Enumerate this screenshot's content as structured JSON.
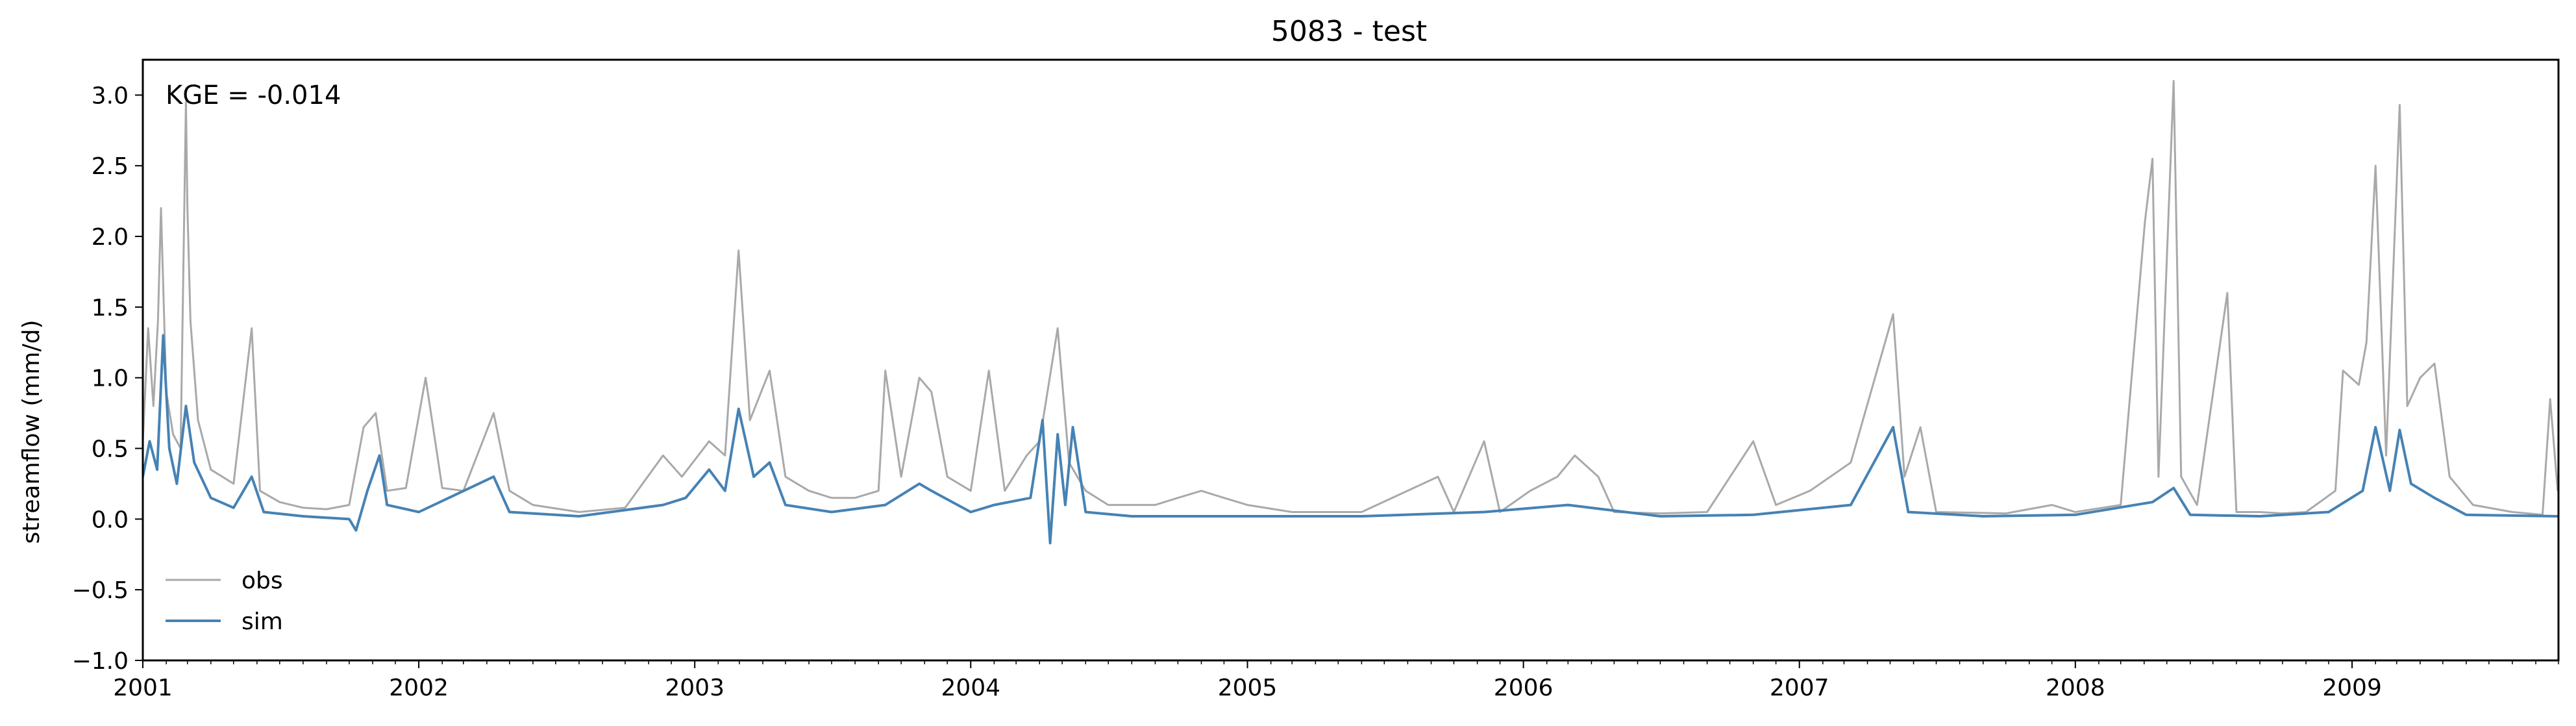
{
  "chart_data": {
    "type": "line",
    "title": "5083 - test",
    "xlabel": "",
    "ylabel": "streamflow (mm/d)",
    "annotation": "KGE = -0.014",
    "xlim": [
      "2001-01-01",
      "2009-10-01"
    ],
    "ylim": [
      -1.0,
      3.25
    ],
    "x_ticks": [
      "2001",
      "2002",
      "2003",
      "2004",
      "2005",
      "2006",
      "2007",
      "2008",
      "2009"
    ],
    "y_ticks": [
      "−1.0",
      "−0.5",
      "0.0",
      "0.5",
      "1.0",
      "1.5",
      "2.0",
      "2.5",
      "3.0"
    ],
    "grid": false,
    "legend_position": "lower-left",
    "series": [
      {
        "name": "obs",
        "color": "#a9a9a9",
        "points": [
          [
            "2001-01-01",
            0.55
          ],
          [
            "2001-01-08",
            1.35
          ],
          [
            "2001-01-15",
            0.8
          ],
          [
            "2001-01-21",
            1.4
          ],
          [
            "2001-01-25",
            2.2
          ],
          [
            "2001-02-01",
            0.9
          ],
          [
            "2001-02-10",
            0.6
          ],
          [
            "2001-02-20",
            0.5
          ],
          [
            "2001-02-27",
            2.95
          ],
          [
            "2001-03-01",
            2.2
          ],
          [
            "2001-03-05",
            1.4
          ],
          [
            "2001-03-15",
            0.7
          ],
          [
            "2001-04-01",
            0.35
          ],
          [
            "2001-05-01",
            0.25
          ],
          [
            "2001-05-25",
            1.35
          ],
          [
            "2001-06-05",
            0.2
          ],
          [
            "2001-07-01",
            0.12
          ],
          [
            "2001-08-01",
            0.08
          ],
          [
            "2001-09-01",
            0.07
          ],
          [
            "2001-10-01",
            0.1
          ],
          [
            "2001-10-20",
            0.65
          ],
          [
            "2001-11-05",
            0.75
          ],
          [
            "2001-11-20",
            0.2
          ],
          [
            "2001-12-15",
            0.22
          ],
          [
            "2002-01-10",
            1.0
          ],
          [
            "2002-02-01",
            0.22
          ],
          [
            "2002-03-01",
            0.2
          ],
          [
            "2002-04-10",
            0.75
          ],
          [
            "2002-05-01",
            0.2
          ],
          [
            "2002-06-01",
            0.1
          ],
          [
            "2002-08-01",
            0.05
          ],
          [
            "2002-10-01",
            0.08
          ],
          [
            "2002-11-20",
            0.45
          ],
          [
            "2002-12-15",
            0.3
          ],
          [
            "2003-01-20",
            0.55
          ],
          [
            "2003-02-10",
            0.45
          ],
          [
            "2003-02-28",
            1.9
          ],
          [
            "2003-03-15",
            0.7
          ],
          [
            "2003-04-10",
            1.05
          ],
          [
            "2003-05-01",
            0.3
          ],
          [
            "2003-06-01",
            0.2
          ],
          [
            "2003-07-01",
            0.15
          ],
          [
            "2003-08-01",
            0.15
          ],
          [
            "2003-09-01",
            0.2
          ],
          [
            "2003-09-10",
            1.05
          ],
          [
            "2003-10-01",
            0.3
          ],
          [
            "2003-10-25",
            1.0
          ],
          [
            "2003-11-10",
            0.9
          ],
          [
            "2003-12-01",
            0.3
          ],
          [
            "2004-01-01",
            0.2
          ],
          [
            "2004-01-25",
            1.05
          ],
          [
            "2004-02-15",
            0.2
          ],
          [
            "2004-03-15",
            0.45
          ],
          [
            "2004-04-01",
            0.55
          ],
          [
            "2004-04-25",
            1.35
          ],
          [
            "2004-05-10",
            0.4
          ],
          [
            "2004-06-01",
            0.2
          ],
          [
            "2004-07-01",
            0.1
          ],
          [
            "2004-09-01",
            0.1
          ],
          [
            "2004-10-01",
            0.15
          ],
          [
            "2004-11-01",
            0.2
          ],
          [
            "2004-12-01",
            0.15
          ],
          [
            "2005-01-01",
            0.1
          ],
          [
            "2005-03-01",
            0.05
          ],
          [
            "2005-06-01",
            0.05
          ],
          [
            "2005-09-10",
            0.3
          ],
          [
            "2005-10-01",
            0.05
          ],
          [
            "2005-11-10",
            0.55
          ],
          [
            "2005-12-01",
            0.05
          ],
          [
            "2006-01-10",
            0.2
          ],
          [
            "2006-02-15",
            0.3
          ],
          [
            "2006-03-10",
            0.45
          ],
          [
            "2006-04-10",
            0.3
          ],
          [
            "2006-05-01",
            0.05
          ],
          [
            "2006-07-01",
            0.04
          ],
          [
            "2006-09-01",
            0.05
          ],
          [
            "2006-11-01",
            0.55
          ],
          [
            "2006-12-01",
            0.1
          ],
          [
            "2007-01-15",
            0.2
          ],
          [
            "2007-03-10",
            0.4
          ],
          [
            "2007-05-05",
            1.45
          ],
          [
            "2007-05-20",
            0.3
          ],
          [
            "2007-06-10",
            0.65
          ],
          [
            "2007-07-01",
            0.05
          ],
          [
            "2007-10-01",
            0.04
          ],
          [
            "2007-12-01",
            0.1
          ],
          [
            "2008-01-01",
            0.05
          ],
          [
            "2008-03-01",
            0.1
          ],
          [
            "2008-04-02",
            2.1
          ],
          [
            "2008-04-12",
            2.55
          ],
          [
            "2008-04-20",
            0.3
          ],
          [
            "2008-05-10",
            3.1
          ],
          [
            "2008-05-20",
            0.3
          ],
          [
            "2008-06-10",
            0.1
          ],
          [
            "2008-07-20",
            1.6
          ],
          [
            "2008-08-01",
            0.05
          ],
          [
            "2008-09-01",
            0.05
          ],
          [
            "2008-10-01",
            0.04
          ],
          [
            "2008-11-01",
            0.05
          ],
          [
            "2008-12-10",
            0.2
          ],
          [
            "2008-12-20",
            1.05
          ],
          [
            "2009-01-10",
            0.95
          ],
          [
            "2009-01-20",
            1.25
          ],
          [
            "2009-02-01",
            2.5
          ],
          [
            "2009-02-15",
            0.45
          ],
          [
            "2009-03-05",
            2.93
          ],
          [
            "2009-03-15",
            0.8
          ],
          [
            "2009-04-01",
            1.0
          ],
          [
            "2009-04-20",
            1.1
          ],
          [
            "2009-05-10",
            0.3
          ],
          [
            "2009-06-10",
            0.1
          ],
          [
            "2009-08-01",
            0.05
          ],
          [
            "2009-09-10",
            0.03
          ],
          [
            "2009-09-20",
            0.85
          ],
          [
            "2009-09-30",
            0.2
          ]
        ]
      },
      {
        "name": "sim",
        "color": "#4682b4",
        "points": [
          [
            "2001-01-01",
            0.3
          ],
          [
            "2001-01-10",
            0.55
          ],
          [
            "2001-01-20",
            0.35
          ],
          [
            "2001-01-28",
            1.3
          ],
          [
            "2001-02-05",
            0.5
          ],
          [
            "2001-02-15",
            0.25
          ],
          [
            "2001-02-27",
            0.8
          ],
          [
            "2001-03-10",
            0.4
          ],
          [
            "2001-04-01",
            0.15
          ],
          [
            "2001-05-01",
            0.08
          ],
          [
            "2001-05-25",
            0.3
          ],
          [
            "2001-06-10",
            0.05
          ],
          [
            "2001-08-01",
            0.02
          ],
          [
            "2001-10-01",
            0.0
          ],
          [
            "2001-10-10",
            -0.08
          ],
          [
            "2001-10-25",
            0.2
          ],
          [
            "2001-11-10",
            0.45
          ],
          [
            "2001-11-20",
            0.1
          ],
          [
            "2002-01-01",
            0.05
          ],
          [
            "2002-04-10",
            0.3
          ],
          [
            "2002-05-01",
            0.05
          ],
          [
            "2002-08-01",
            0.02
          ],
          [
            "2002-11-20",
            0.1
          ],
          [
            "2002-12-20",
            0.15
          ],
          [
            "2003-01-20",
            0.35
          ],
          [
            "2003-02-10",
            0.2
          ],
          [
            "2003-02-28",
            0.78
          ],
          [
            "2003-03-20",
            0.3
          ],
          [
            "2003-04-10",
            0.4
          ],
          [
            "2003-05-01",
            0.1
          ],
          [
            "2003-07-01",
            0.05
          ],
          [
            "2003-09-10",
            0.1
          ],
          [
            "2003-10-25",
            0.25
          ],
          [
            "2003-11-10",
            0.2
          ],
          [
            "2004-01-01",
            0.05
          ],
          [
            "2004-02-01",
            0.1
          ],
          [
            "2004-03-20",
            0.15
          ],
          [
            "2004-04-05",
            0.7
          ],
          [
            "2004-04-15",
            -0.17
          ],
          [
            "2004-04-25",
            0.6
          ],
          [
            "2004-05-05",
            0.1
          ],
          [
            "2004-05-15",
            0.65
          ],
          [
            "2004-06-01",
            0.05
          ],
          [
            "2004-08-01",
            0.02
          ],
          [
            "2004-11-01",
            0.02
          ],
          [
            "2005-01-01",
            0.02
          ],
          [
            "2005-06-01",
            0.02
          ],
          [
            "2005-11-10",
            0.05
          ],
          [
            "2006-03-01",
            0.1
          ],
          [
            "2006-07-01",
            0.02
          ],
          [
            "2006-11-01",
            0.03
          ],
          [
            "2007-03-10",
            0.1
          ],
          [
            "2007-05-05",
            0.65
          ],
          [
            "2007-05-25",
            0.05
          ],
          [
            "2007-09-01",
            0.02
          ],
          [
            "2008-01-01",
            0.03
          ],
          [
            "2008-04-12",
            0.12
          ],
          [
            "2008-05-10",
            0.22
          ],
          [
            "2008-06-01",
            0.03
          ],
          [
            "2008-09-01",
            0.02
          ],
          [
            "2008-12-01",
            0.05
          ],
          [
            "2009-01-15",
            0.2
          ],
          [
            "2009-02-01",
            0.65
          ],
          [
            "2009-02-20",
            0.2
          ],
          [
            "2009-03-05",
            0.63
          ],
          [
            "2009-03-20",
            0.25
          ],
          [
            "2009-04-20",
            0.15
          ],
          [
            "2009-06-01",
            0.03
          ],
          [
            "2009-09-30",
            0.02
          ]
        ]
      }
    ]
  }
}
